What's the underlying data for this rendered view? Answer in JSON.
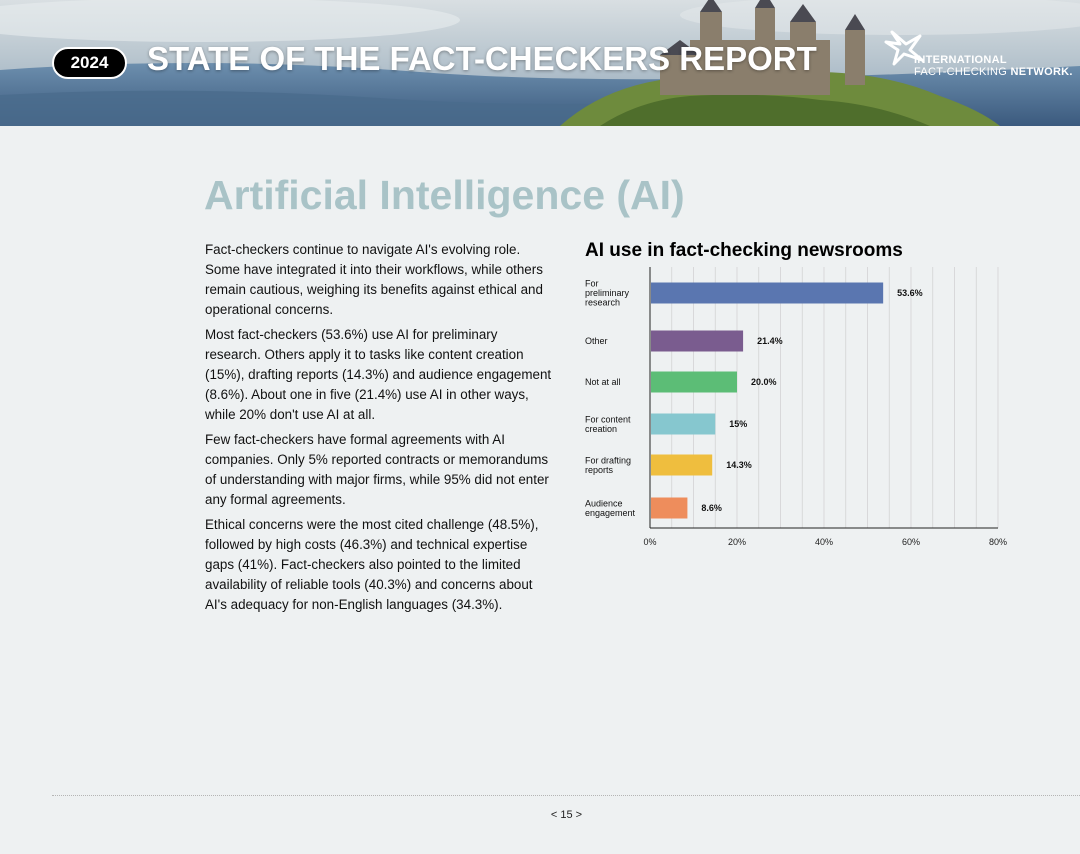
{
  "header": {
    "year": "2024",
    "report_title": "STATE OF THE FACT-CHECKERS REPORT",
    "logo_line1": "INTERNATIONAL",
    "logo_line2a": "FACT-CHECKING",
    "logo_line2b": "NETWORK."
  },
  "section": {
    "title": "Artificial Intelligence (AI)",
    "paragraphs": [
      "Fact-checkers continue to navigate AI's evolving role. Some have integrated it into their workflows, while others remain cautious, weighing its benefits against ethical and operational concerns.",
      "Most fact-checkers (53.6%) use AI for preliminary research. Others apply it to tasks like content creation (15%), drafting reports (14.3%) and audience engagement (8.6%).  About one in five (21.4%) use AI in other ways, while 20% don't use AI at all.",
      "Few fact-checkers have formal agreements with AI companies. Only 5% reported contracts or memorandums of understanding with major firms, while 95% did not enter any formal agreements.",
      "Ethical concerns were the most cited challenge (48.5%), followed by high costs (46.3%) and technical expertise gaps (41%). Fact-checkers also pointed to the limited availability of reliable tools (40.3%) and concerns about AI's adequacy for non-English languages (34.3%)."
    ]
  },
  "chart_data": {
    "type": "bar",
    "orientation": "horizontal",
    "title": "AI use in fact-checking newsrooms",
    "categories": [
      [
        "For",
        "preliminary",
        "research"
      ],
      [
        "Other"
      ],
      [
        "Not at all"
      ],
      [
        "For content",
        "creation"
      ],
      [
        "For drafting",
        "reports"
      ],
      [
        "Audience",
        "engagement"
      ]
    ],
    "values": [
      53.6,
      21.4,
      20.0,
      15,
      14.3,
      8.6
    ],
    "value_labels": [
      "53.6%",
      "21.4%",
      "20.0%",
      "15%",
      "14.3%",
      "8.6%"
    ],
    "colors": [
      "#5a76b0",
      "#7a5c8f",
      "#5cbd76",
      "#86c7cf",
      "#efbe3e",
      "#ee8d5c"
    ],
    "xlim": [
      0,
      80
    ],
    "xticks": [
      "0%",
      "20%",
      "40%",
      "60%",
      "80%"
    ],
    "grid": true
  },
  "footer": {
    "page": "< 15 >"
  }
}
